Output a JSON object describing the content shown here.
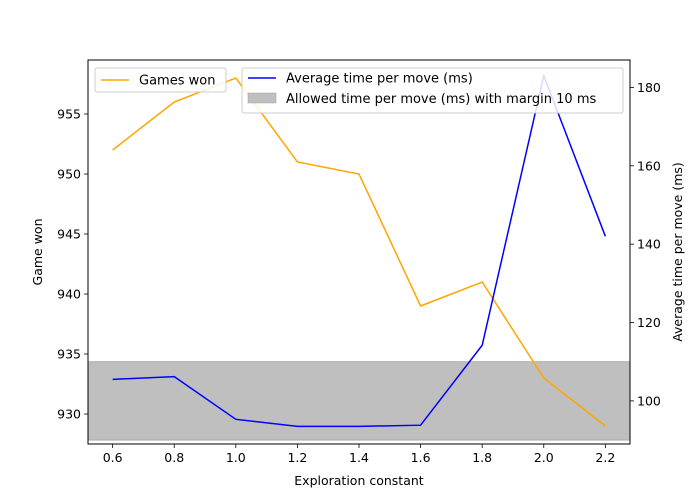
{
  "chart_data": {
    "type": "line",
    "xlabel": "Exploration constant",
    "ylabel_left": "Game won",
    "ylabel_right": "Average time per move (ms)",
    "x": [
      0.6,
      0.8,
      1.0,
      1.2,
      1.4,
      1.6,
      1.8,
      2.0,
      2.2
    ],
    "x_ticks": [
      "0.6",
      "0.8",
      "1.0",
      "1.2",
      "1.4",
      "1.6",
      "1.8",
      "2.0",
      "2.2"
    ],
    "xlim": [
      0.52,
      2.28
    ],
    "ylim_left": [
      927.5,
      959.5
    ],
    "ylim_right": [
      89,
      187
    ],
    "y_ticks_left": [
      "930",
      "935",
      "940",
      "945",
      "950",
      "955"
    ],
    "y_ticks_right": [
      "100",
      "120",
      "140",
      "160",
      "180"
    ],
    "series": [
      {
        "name": "Games won",
        "axis": "left",
        "color": "#ffa500",
        "values": [
          952,
          956,
          958,
          951,
          950,
          939,
          941,
          933,
          929
        ]
      },
      {
        "name": "Average time per move (ms)",
        "axis": "right",
        "color": "#0000ff",
        "values": [
          105.5,
          106.2,
          95.3,
          93.5,
          93.5,
          93.8,
          114.2,
          183,
          142
        ]
      }
    ],
    "band": {
      "name": "Allowed time per move (ms) with margin 10 ms",
      "axis": "right",
      "color": "#bfbfbf",
      "range": [
        90,
        110
      ]
    },
    "legend": {
      "left_placement": "top-left",
      "right_placement": "top-right"
    },
    "grid": false
  }
}
